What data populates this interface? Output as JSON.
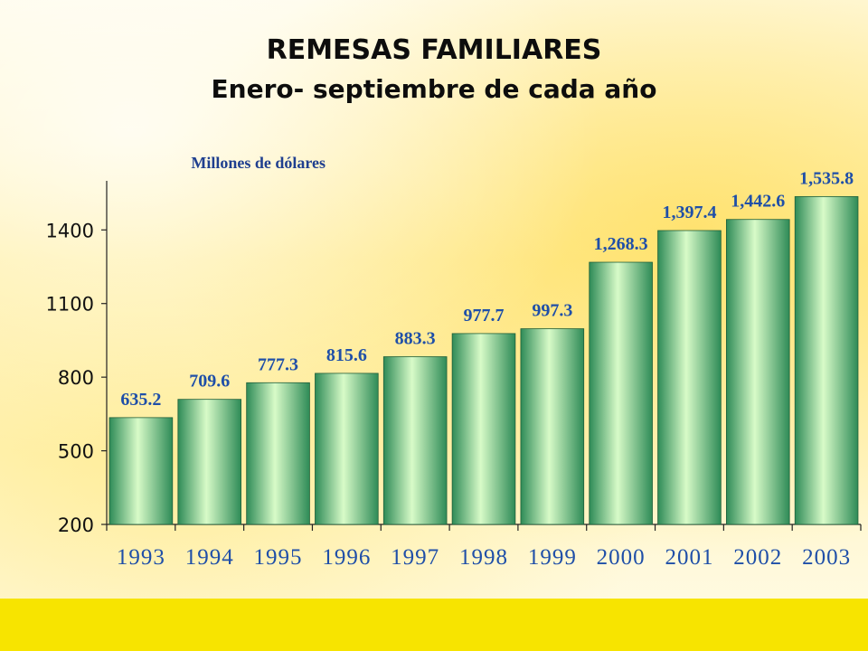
{
  "slide": {
    "title": "REMESAS FAMILIARES",
    "subtitle": "Enero- septiembre de cada año",
    "colors": {
      "background": "#fff4b8",
      "footer_band": "#f7e400",
      "bar_light": "#d8fbc8",
      "bar_dark": "#2e8b57",
      "data_label": "#1f4fa8",
      "unit_label": "#1f3f8f",
      "year_label": "#1f4fa8"
    }
  },
  "chart_data": {
    "type": "bar",
    "ylabel": "Millones de dólares",
    "categories": [
      "1993",
      "1994",
      "1995",
      "1996",
      "1997",
      "1998",
      "1999",
      "2000",
      "2001",
      "2002",
      "2003"
    ],
    "values": [
      635.2,
      709.6,
      777.3,
      815.6,
      883.3,
      977.7,
      997.3,
      1268.3,
      1397.4,
      1442.6,
      1535.8
    ],
    "value_labels": [
      "635.2",
      "709.6",
      "777.3",
      "815.6",
      "883.3",
      "977.7",
      "997.3",
      "1,268.3",
      "1,397.4",
      "1,442.6",
      "1,535.8"
    ],
    "yticks": [
      200,
      500,
      800,
      1100,
      1400
    ],
    "ylim": [
      200,
      1600
    ],
    "grid": false,
    "legend": "none"
  }
}
